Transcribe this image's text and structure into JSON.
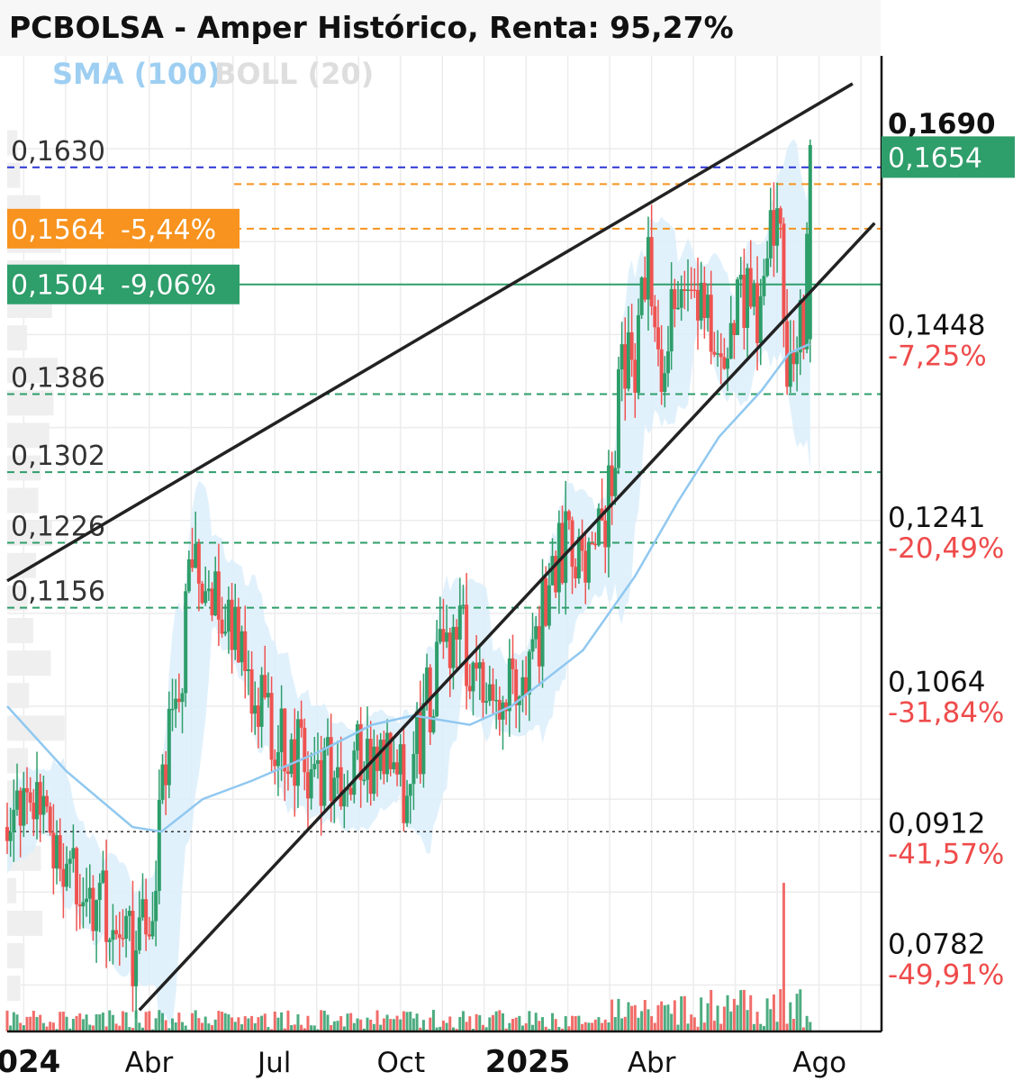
{
  "header": {
    "title": "PCBOLSA - Amper Histórico, Renta: 95,27%",
    "indicator_sma": "SMA (100)",
    "indicator_boll": "BOLL (20)"
  },
  "colors": {
    "up": "#2e9e6a",
    "down": "#ef5350",
    "sma": "#90c8f0",
    "boll_fill": "#dceefb",
    "orange": "#f7931e",
    "green_label": "#2e9e6a",
    "blue_dash": "#2b35d6",
    "channel": "#222222",
    "pct_red": "#ef4b4b"
  },
  "chart_data": {
    "type": "candlestick",
    "title": "PCBOLSA - Amper Histórico, Renta: 95,27%",
    "x_labels": [
      "2024",
      "Abr",
      "Jul",
      "Oct",
      "2025",
      "Abr",
      "Ago"
    ],
    "x_label_dates": [
      "2024-01-01",
      "2024-04-01",
      "2024-07-01",
      "2024-10-01",
      "2025-01-01",
      "2025-04-01",
      "2025-08-01"
    ],
    "x_range": [
      "2023-12-20",
      "2025-09-15"
    ],
    "y_range": [
      0.07,
      0.175
    ],
    "grid": true,
    "last_price": "0,1654",
    "axis_top_label": "0,1690",
    "right_levels": [
      {
        "value": 0.1448,
        "label": "0,1448",
        "pct": "-7,25%"
      },
      {
        "value": 0.1241,
        "label": "0,1241",
        "pct": "-20,49%"
      },
      {
        "value": 0.1064,
        "label": "0,1064",
        "pct": "-31,84%"
      },
      {
        "value": 0.0912,
        "label": "0,0912",
        "pct": "-41,57%"
      },
      {
        "value": 0.0782,
        "label": "0,0782",
        "pct": "-49,91%"
      }
    ],
    "left_levels": [
      {
        "value": 0.163,
        "label": "0,1630",
        "style": "blue-dashed"
      },
      {
        "value": 0.1386,
        "label": "0,1386",
        "style": "green-dashed"
      },
      {
        "value": 0.1302,
        "label": "0,1302",
        "style": "green-dashed"
      },
      {
        "value": 0.1226,
        "label": "0,1226",
        "style": "green-dashed"
      },
      {
        "value": 0.1156,
        "label": "0,1156",
        "style": "green-dashed"
      }
    ],
    "badges": [
      {
        "value": 0.1564,
        "label": "0,1564",
        "pct": "-5,44%",
        "color": "orange"
      },
      {
        "value": 0.1504,
        "label": "0,1504",
        "pct": "-9,06%",
        "color": "green"
      }
    ],
    "extra_orange_level": 0.1612,
    "dotted_level": 0.0915,
    "channel_upper": [
      [
        "2023-12-20",
        0.1185
      ],
      [
        "2025-08-25",
        0.172
      ]
    ],
    "channel_lower": [
      [
        "2024-03-25",
        0.0723
      ],
      [
        "2025-09-10",
        0.157
      ]
    ],
    "price_path": [
      [
        "2023-12-20",
        0.092
      ],
      [
        "2024-01-05",
        0.095
      ],
      [
        "2024-01-25",
        0.09
      ],
      [
        "2024-02-15",
        0.086
      ],
      [
        "2024-03-05",
        0.083
      ],
      [
        "2024-03-25",
        0.078
      ],
      [
        "2024-04-05",
        0.087
      ],
      [
        "2024-04-15",
        0.1
      ],
      [
        "2024-04-25",
        0.109
      ],
      [
        "2024-05-03",
        0.1215
      ],
      [
        "2024-05-15",
        0.117
      ],
      [
        "2024-06-01",
        0.112
      ],
      [
        "2024-06-15",
        0.107
      ],
      [
        "2024-07-05",
        0.101
      ],
      [
        "2024-07-25",
        0.099
      ],
      [
        "2024-08-15",
        0.097
      ],
      [
        "2024-09-01",
        0.1
      ],
      [
        "2024-09-20",
        0.098
      ],
      [
        "2024-10-05",
        0.096
      ],
      [
        "2024-10-20",
        0.105
      ],
      [
        "2024-11-05",
        0.113
      ],
      [
        "2024-11-25",
        0.11
      ],
      [
        "2024-12-10",
        0.106
      ],
      [
        "2024-12-25",
        0.108
      ],
      [
        "2025-01-10",
        0.114
      ],
      [
        "2025-01-25",
        0.122
      ],
      [
        "2025-02-10",
        0.12
      ],
      [
        "2025-02-25",
        0.124
      ],
      [
        "2025-03-10",
        0.14
      ],
      [
        "2025-03-20",
        0.142
      ],
      [
        "2025-03-30",
        0.153
      ],
      [
        "2025-04-07",
        0.142
      ],
      [
        "2025-04-15",
        0.146
      ],
      [
        "2025-05-01",
        0.149
      ],
      [
        "2025-05-20",
        0.144
      ],
      [
        "2025-06-05",
        0.15
      ],
      [
        "2025-06-20",
        0.146
      ],
      [
        "2025-07-01",
        0.16
      ],
      [
        "2025-07-10",
        0.14
      ],
      [
        "2025-07-20",
        0.146
      ],
      [
        "2025-07-27",
        0.1654
      ]
    ],
    "sma_path": [
      [
        "2023-12-20",
        0.105
      ],
      [
        "2024-02-01",
        0.098
      ],
      [
        "2024-03-20",
        0.092
      ],
      [
        "2024-04-10",
        0.0915
      ],
      [
        "2024-05-10",
        0.095
      ],
      [
        "2024-06-15",
        0.097
      ],
      [
        "2024-08-01",
        0.1
      ],
      [
        "2024-09-10",
        0.103
      ],
      [
        "2024-10-10",
        0.104
      ],
      [
        "2024-11-20",
        0.103
      ],
      [
        "2024-12-20",
        0.105
      ],
      [
        "2025-02-10",
        0.111
      ],
      [
        "2025-03-20",
        0.119
      ],
      [
        "2025-04-20",
        0.127
      ],
      [
        "2025-05-20",
        0.134
      ],
      [
        "2025-06-20",
        0.139
      ],
      [
        "2025-07-10",
        0.143
      ],
      [
        "2025-07-25",
        0.144
      ]
    ],
    "volume_spike_date": "2025-07-05"
  }
}
